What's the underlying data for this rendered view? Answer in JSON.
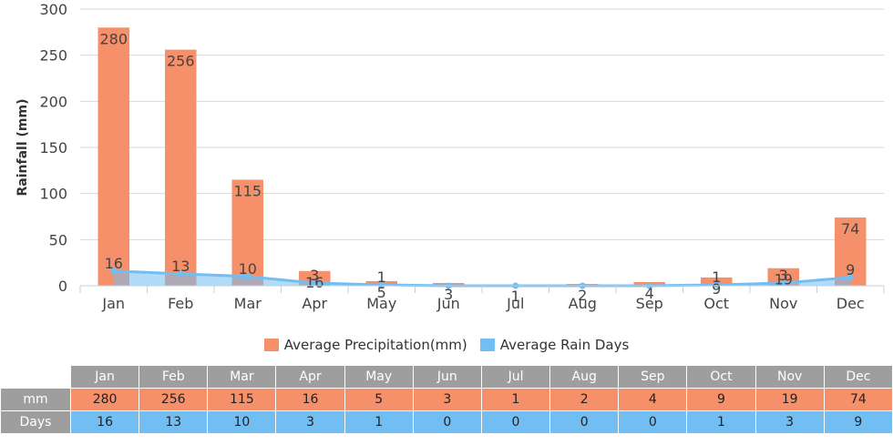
{
  "chart_data": {
    "type": "bar",
    "ylabel": "Rainfall (mm)",
    "ylim": [
      0,
      300
    ],
    "yticks": [
      0,
      50,
      100,
      150,
      200,
      250,
      300
    ],
    "grid": true,
    "categories": [
      "Jan",
      "Feb",
      "Mar",
      "Apr",
      "May",
      "Jun",
      "Jul",
      "Aug",
      "Sep",
      "Oct",
      "Nov",
      "Dec"
    ],
    "series": [
      {
        "name": "Average Precipitation(mm)",
        "kind": "bar",
        "color": "#f5906b",
        "values": [
          280,
          256,
          115,
          16,
          5,
          3,
          1,
          2,
          4,
          9,
          19,
          74
        ]
      },
      {
        "name": "Average Rain Days",
        "kind": "area-line",
        "color": "#72bef2",
        "values": [
          16,
          13,
          10,
          3,
          1,
          0,
          0,
          0,
          0,
          1,
          3,
          9
        ],
        "labels": [
          "16",
          "13",
          "10",
          "3",
          "1",
          "",
          "",
          "",
          "",
          "1",
          "3",
          "9"
        ]
      }
    ],
    "legend_position": "bottom-center"
  },
  "table": {
    "row_labels": [
      "mm",
      "Days"
    ]
  }
}
